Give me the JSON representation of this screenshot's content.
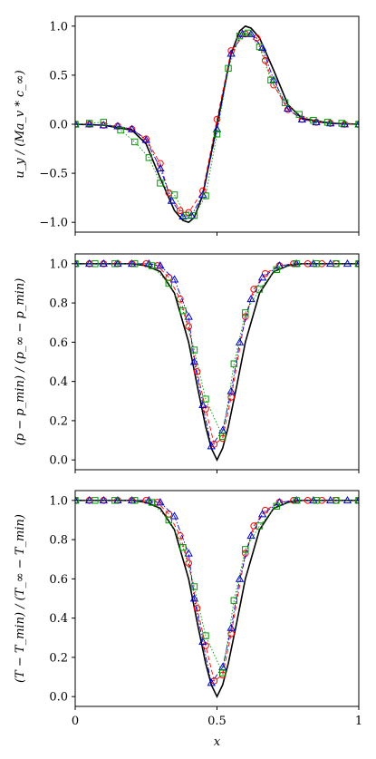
{
  "figure": {
    "xlabel": "x",
    "xlim": [
      0,
      1
    ],
    "xticks": [
      0,
      0.5,
      1
    ],
    "xtick_labels": [
      "0",
      "0.5",
      "1"
    ]
  },
  "chart_data": [
    {
      "type": "line",
      "ylabel": "u_y / (Ma_v * c_∞)",
      "ylim": [
        -1.1,
        1.1
      ],
      "yticks": [
        -1.0,
        -0.5,
        0.0,
        0.5,
        1.0
      ],
      "ytick_labels": [
        "−1.0",
        "−0.5",
        "0.0",
        "0.5",
        "1.0"
      ],
      "grid": false,
      "series": [
        {
          "color": "#000000",
          "style": "solid",
          "marker": "none",
          "x": [
            0,
            0.1,
            0.2,
            0.25,
            0.3,
            0.35,
            0.38,
            0.4,
            0.42,
            0.45,
            0.5,
            0.55,
            0.58,
            0.6,
            0.62,
            0.65,
            0.7,
            0.75,
            0.8,
            0.9,
            1
          ],
          "y": [
            0,
            -0.01,
            -0.06,
            -0.2,
            -0.55,
            -0.88,
            -0.98,
            -1.0,
            -0.95,
            -0.72,
            0,
            0.72,
            0.95,
            1.0,
            0.98,
            0.88,
            0.55,
            0.2,
            0.06,
            0.01,
            0
          ]
        },
        {
          "color": "#ff0000",
          "style": "dashed",
          "marker": "circle",
          "x": [
            0,
            0.05,
            0.1,
            0.15,
            0.2,
            0.25,
            0.3,
            0.33,
            0.37,
            0.4,
            0.45,
            0.5,
            0.55,
            0.6,
            0.64,
            0.67,
            0.7,
            0.75,
            0.8,
            0.85,
            0.9,
            0.95,
            1
          ],
          "y": [
            0,
            0,
            -0.01,
            -0.02,
            -0.05,
            -0.15,
            -0.4,
            -0.7,
            -0.88,
            -0.9,
            -0.68,
            0.05,
            0.75,
            0.92,
            0.88,
            0.65,
            0.4,
            0.15,
            0.05,
            0.02,
            0.01,
            0,
            0
          ]
        },
        {
          "color": "#0000cc",
          "style": "dashdot",
          "marker": "triangle",
          "x": [
            0,
            0.05,
            0.1,
            0.15,
            0.2,
            0.25,
            0.3,
            0.34,
            0.38,
            0.41,
            0.45,
            0.5,
            0.55,
            0.59,
            0.62,
            0.66,
            0.7,
            0.75,
            0.8,
            0.85,
            0.9,
            0.95,
            1
          ],
          "y": [
            0,
            0,
            -0.01,
            -0.02,
            -0.05,
            -0.16,
            -0.45,
            -0.78,
            -0.94,
            -0.93,
            -0.72,
            -0.05,
            0.72,
            0.92,
            0.92,
            0.78,
            0.45,
            0.16,
            0.05,
            0.02,
            0.01,
            0,
            0
          ]
        },
        {
          "color": "#009900",
          "style": "dotted",
          "marker": "square",
          "x": [
            0,
            0.05,
            0.1,
            0.16,
            0.21,
            0.26,
            0.3,
            0.35,
            0.39,
            0.42,
            0.46,
            0.5,
            0.54,
            0.58,
            0.61,
            0.65,
            0.69,
            0.74,
            0.79,
            0.84,
            0.89,
            0.94,
            1
          ],
          "y": [
            0,
            0.01,
            0.02,
            -0.06,
            -0.18,
            -0.34,
            -0.6,
            -0.72,
            -0.93,
            -0.93,
            -0.73,
            -0.1,
            0.57,
            0.9,
            0.93,
            0.79,
            0.45,
            0.22,
            0.1,
            0.04,
            0.02,
            0.01,
            0
          ]
        }
      ]
    },
    {
      "type": "line",
      "ylabel": "(p − p_min) / (p_∞ − p_min)",
      "ylim": [
        -0.05,
        1.05
      ],
      "yticks": [
        0.0,
        0.2,
        0.4,
        0.6,
        0.8,
        1.0
      ],
      "ytick_labels": [
        "0.0",
        "0.2",
        "0.4",
        "0.6",
        "0.8",
        "1.0"
      ],
      "grid": false,
      "series": [
        {
          "color": "#000000",
          "style": "solid",
          "marker": "none",
          "x": [
            0,
            0.2,
            0.25,
            0.3,
            0.35,
            0.4,
            0.43,
            0.46,
            0.48,
            0.5,
            0.52,
            0.54,
            0.57,
            0.6,
            0.65,
            0.7,
            0.75,
            0.8,
            1
          ],
          "y": [
            1.0,
            1.0,
            0.99,
            0.96,
            0.85,
            0.6,
            0.38,
            0.17,
            0.06,
            0.0,
            0.06,
            0.17,
            0.38,
            0.6,
            0.85,
            0.96,
            0.99,
            1.0,
            1.0
          ]
        },
        {
          "color": "#ff0000",
          "style": "dashed",
          "marker": "circle",
          "x": [
            0,
            0.05,
            0.1,
            0.15,
            0.2,
            0.25,
            0.29,
            0.33,
            0.37,
            0.4,
            0.43,
            0.46,
            0.49,
            0.52,
            0.55,
            0.6,
            0.63,
            0.67,
            0.72,
            0.77,
            0.82,
            0.87,
            0.92,
            1
          ],
          "y": [
            1.0,
            1.0,
            1.0,
            1.0,
            1.0,
            1.0,
            0.99,
            0.93,
            0.82,
            0.68,
            0.45,
            0.26,
            0.08,
            0.11,
            0.32,
            0.73,
            0.87,
            0.95,
            0.99,
            1.0,
            1.0,
            1.0,
            1.0,
            1.0
          ]
        },
        {
          "color": "#0000cc",
          "style": "dashdot",
          "marker": "triangle",
          "x": [
            0,
            0.05,
            0.1,
            0.15,
            0.2,
            0.26,
            0.3,
            0.35,
            0.4,
            0.42,
            0.45,
            0.48,
            0.52,
            0.55,
            0.58,
            0.62,
            0.66,
            0.72,
            0.78,
            0.84,
            0.9,
            0.96,
            1
          ],
          "y": [
            1.0,
            1.0,
            1.0,
            1.0,
            1.0,
            1.0,
            0.99,
            0.92,
            0.73,
            0.5,
            0.28,
            0.07,
            0.15,
            0.35,
            0.6,
            0.82,
            0.93,
            0.99,
            1.0,
            1.0,
            1.0,
            1.0,
            1.0
          ]
        },
        {
          "color": "#009900",
          "style": "dotted",
          "marker": "square",
          "x": [
            0,
            0.07,
            0.14,
            0.21,
            0.27,
            0.33,
            0.38,
            0.42,
            0.46,
            0.52,
            0.56,
            0.6,
            0.65,
            0.71,
            0.78,
            0.85,
            0.92,
            1
          ],
          "y": [
            1.0,
            1.0,
            1.0,
            1.0,
            0.99,
            0.9,
            0.76,
            0.56,
            0.31,
            0.12,
            0.49,
            0.75,
            0.87,
            0.97,
            1.0,
            1.0,
            1.0,
            1.0
          ]
        }
      ]
    },
    {
      "type": "line",
      "ylabel": "(T − T_min) / (T_∞ − T_min)",
      "ylim": [
        -0.05,
        1.05
      ],
      "yticks": [
        0.0,
        0.2,
        0.4,
        0.6,
        0.8,
        1.0
      ],
      "ytick_labels": [
        "0.0",
        "0.2",
        "0.4",
        "0.6",
        "0.8",
        "1.0"
      ],
      "grid": false,
      "series": [
        {
          "color": "#000000",
          "style": "solid",
          "marker": "none",
          "x": [
            0,
            0.2,
            0.25,
            0.3,
            0.35,
            0.4,
            0.43,
            0.46,
            0.48,
            0.5,
            0.52,
            0.54,
            0.57,
            0.6,
            0.65,
            0.7,
            0.75,
            0.8,
            1
          ],
          "y": [
            1.0,
            1.0,
            0.99,
            0.96,
            0.85,
            0.6,
            0.38,
            0.17,
            0.06,
            0.0,
            0.06,
            0.17,
            0.38,
            0.6,
            0.85,
            0.96,
            0.99,
            1.0,
            1.0
          ]
        },
        {
          "color": "#ff0000",
          "style": "dashed",
          "marker": "circle",
          "x": [
            0,
            0.05,
            0.1,
            0.15,
            0.2,
            0.25,
            0.29,
            0.33,
            0.37,
            0.4,
            0.43,
            0.46,
            0.49,
            0.52,
            0.55,
            0.6,
            0.63,
            0.67,
            0.72,
            0.77,
            0.82,
            0.87,
            0.92,
            1
          ],
          "y": [
            1.0,
            1.0,
            1.0,
            1.0,
            1.0,
            1.0,
            0.99,
            0.93,
            0.82,
            0.68,
            0.45,
            0.26,
            0.08,
            0.11,
            0.32,
            0.73,
            0.87,
            0.95,
            0.99,
            1.0,
            1.0,
            1.0,
            1.0,
            1.0
          ]
        },
        {
          "color": "#0000cc",
          "style": "dashdot",
          "marker": "triangle",
          "x": [
            0,
            0.05,
            0.1,
            0.15,
            0.2,
            0.26,
            0.3,
            0.35,
            0.4,
            0.42,
            0.45,
            0.48,
            0.52,
            0.55,
            0.58,
            0.62,
            0.66,
            0.72,
            0.78,
            0.84,
            0.9,
            0.96,
            1
          ],
          "y": [
            1.0,
            1.0,
            1.0,
            1.0,
            1.0,
            1.0,
            0.99,
            0.92,
            0.73,
            0.5,
            0.28,
            0.07,
            0.15,
            0.35,
            0.6,
            0.82,
            0.93,
            0.99,
            1.0,
            1.0,
            1.0,
            1.0,
            1.0
          ]
        },
        {
          "color": "#009900",
          "style": "dotted",
          "marker": "square",
          "x": [
            0,
            0.07,
            0.14,
            0.21,
            0.27,
            0.33,
            0.38,
            0.42,
            0.46,
            0.52,
            0.56,
            0.6,
            0.65,
            0.71,
            0.78,
            0.85,
            0.92,
            1
          ],
          "y": [
            1.0,
            1.0,
            1.0,
            1.0,
            0.99,
            0.9,
            0.76,
            0.56,
            0.31,
            0.12,
            0.49,
            0.75,
            0.87,
            0.97,
            1.0,
            1.0,
            1.0,
            1.0
          ]
        }
      ]
    }
  ]
}
